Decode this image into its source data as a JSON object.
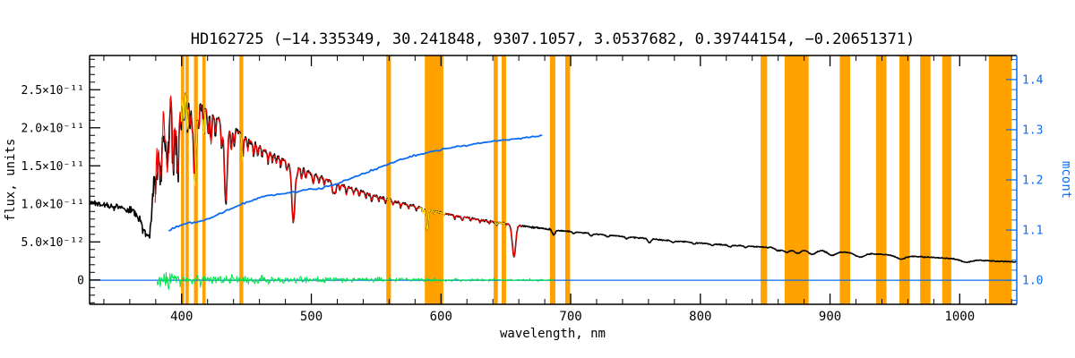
{
  "page": {
    "background": "#ffffff"
  },
  "chart_data": {
    "type": "line",
    "title": "HD162725  (−14.335349, 30.241848, 9307.1057, 3.0537682, 0.39744154, −0.20651371)",
    "xlabel": "wavelength, nm",
    "ylabel_left": "flux, units",
    "ylabel_right": "mcont",
    "x_range": [
      329,
      1044
    ],
    "x_ticks": [
      400,
      500,
      600,
      700,
      800,
      900,
      1000
    ],
    "x_tick_labels": [
      "400",
      "500",
      "600",
      "700",
      "800",
      "900",
      "1000"
    ],
    "x_minor_step": 20,
    "flux_range_e11": [
      -0.32,
      2.95
    ],
    "flux_ticks_e11": [
      0,
      0.5,
      1.0,
      1.5,
      2.0,
      2.5
    ],
    "flux_tick_labels": [
      "0",
      "5.0×10⁻¹²",
      "1.0×10⁻¹¹",
      "1.5×10⁻¹¹",
      "2.0×10⁻¹¹",
      "2.5×10⁻¹¹"
    ],
    "mcont_range": [
      0.952,
      1.448
    ],
    "mcont_ticks": [
      1.0,
      1.1,
      1.2,
      1.3,
      1.4
    ],
    "mcont_tick_labels": [
      "1.0",
      "1.1",
      "1.2",
      "1.3",
      "1.4"
    ],
    "colors": {
      "spectrum": "#000000",
      "model": "#ff0000",
      "model_masked": "#ffe400",
      "residual": "#00e54c",
      "mcont": "#0a6cf2",
      "mask": "#ffa200",
      "axis_left": "#000000",
      "axis_right": "#0a6cf2",
      "background": "#ffffff"
    },
    "masks": [
      [
        399.5,
        402.0
      ],
      [
        403.0,
        405.5
      ],
      [
        409.5,
        412.5
      ],
      [
        416.0,
        418.5
      ],
      [
        444.5,
        447.5
      ],
      [
        557.8,
        561.4
      ],
      [
        587.5,
        601.8
      ],
      [
        640.6,
        643.8
      ],
      [
        646.8,
        650.2
      ],
      [
        684.0,
        688.2
      ],
      [
        695.8,
        699.6
      ],
      [
        846.5,
        851.5
      ],
      [
        865.0,
        883.5
      ],
      [
        907.5,
        915.5
      ],
      [
        935.5,
        943.5
      ],
      [
        953.5,
        961.5
      ],
      [
        969.5,
        977.5
      ],
      [
        986.5,
        993.5
      ],
      [
        1022.5,
        1040.0
      ]
    ],
    "spectrum_continuum_e11": [
      [
        329,
        1.02
      ],
      [
        336,
        1.0
      ],
      [
        344,
        0.975
      ],
      [
        352,
        0.95
      ],
      [
        358,
        0.93
      ],
      [
        363,
        0.9
      ],
      [
        367,
        0.8
      ],
      [
        370,
        0.68
      ],
      [
        372.5,
        0.6
      ],
      [
        374.5,
        0.58
      ],
      [
        376,
        0.66
      ],
      [
        377.5,
        1.1
      ],
      [
        379,
        1.7
      ],
      [
        381,
        2.05
      ],
      [
        383,
        2.25
      ],
      [
        385.5,
        2.38
      ],
      [
        388,
        2.47
      ],
      [
        391,
        2.53
      ],
      [
        394,
        2.56
      ],
      [
        397,
        2.54
      ],
      [
        400,
        2.5
      ],
      [
        404,
        2.44
      ],
      [
        409,
        2.37
      ],
      [
        414,
        2.3
      ],
      [
        420,
        2.22
      ],
      [
        427,
        2.13
      ],
      [
        434,
        2.05
      ],
      [
        442,
        1.96
      ],
      [
        450,
        1.86
      ],
      [
        458,
        1.77
      ],
      [
        466,
        1.69
      ],
      [
        474,
        1.62
      ],
      [
        482,
        1.55
      ],
      [
        490,
        1.48
      ],
      [
        500,
        1.4
      ],
      [
        510,
        1.33
      ],
      [
        520,
        1.27
      ],
      [
        530,
        1.21
      ],
      [
        540,
        1.155
      ],
      [
        550,
        1.1
      ],
      [
        560,
        1.055
      ],
      [
        570,
        1.01
      ],
      [
        580,
        0.965
      ],
      [
        590,
        0.925
      ],
      [
        600,
        0.885
      ],
      [
        610,
        0.85
      ],
      [
        620,
        0.82
      ],
      [
        630,
        0.79
      ],
      [
        640,
        0.765
      ],
      [
        650,
        0.74
      ],
      [
        660,
        0.715
      ],
      [
        670,
        0.695
      ],
      [
        680,
        0.675
      ],
      [
        692,
        0.65
      ],
      [
        704,
        0.63
      ],
      [
        716,
        0.61
      ],
      [
        728,
        0.59
      ],
      [
        740,
        0.57
      ],
      [
        755,
        0.55
      ],
      [
        770,
        0.525
      ],
      [
        785,
        0.505
      ],
      [
        800,
        0.485
      ],
      [
        815,
        0.465
      ],
      [
        830,
        0.45
      ],
      [
        845,
        0.435
      ],
      [
        860,
        0.42
      ],
      [
        875,
        0.405
      ],
      [
        890,
        0.39
      ],
      [
        905,
        0.375
      ],
      [
        920,
        0.355
      ],
      [
        935,
        0.34
      ],
      [
        950,
        0.325
      ],
      [
        965,
        0.31
      ],
      [
        980,
        0.295
      ],
      [
        995,
        0.28
      ],
      [
        1010,
        0.265
      ],
      [
        1025,
        0.25
      ],
      [
        1044,
        0.235
      ]
    ],
    "absorption_lines": [
      [
        656.28,
        0.58,
        1.3
      ],
      [
        486.13,
        0.5,
        1.2
      ],
      [
        434.05,
        0.5,
        1.1
      ],
      [
        410.17,
        0.47,
        1.0
      ],
      [
        397.0,
        0.44,
        0.9
      ],
      [
        393.37,
        0.4,
        0.7
      ],
      [
        388.9,
        0.42,
        0.8
      ],
      [
        383.5,
        0.4,
        0.7
      ],
      [
        379.8,
        0.36,
        0.6
      ],
      [
        381.6,
        0.25,
        0.5
      ],
      [
        385.0,
        0.22,
        0.5
      ],
      [
        387.0,
        0.22,
        0.5
      ],
      [
        390.6,
        0.2,
        0.5
      ],
      [
        395.1,
        0.18,
        0.5
      ],
      [
        399.5,
        0.18,
        0.5
      ],
      [
        401.7,
        0.16,
        0.5
      ],
      [
        404.4,
        0.2,
        0.5
      ],
      [
        406.4,
        0.16,
        0.5
      ],
      [
        408.0,
        0.14,
        0.5
      ],
      [
        413.1,
        0.14,
        0.5
      ],
      [
        417.0,
        0.16,
        0.5
      ],
      [
        420.4,
        0.13,
        0.5
      ],
      [
        422.7,
        0.18,
        0.6
      ],
      [
        426.0,
        0.1,
        0.5
      ],
      [
        430.8,
        0.16,
        0.6
      ],
      [
        438.3,
        0.15,
        0.6
      ],
      [
        440.6,
        0.1,
        0.5
      ],
      [
        447.1,
        0.17,
        0.6
      ],
      [
        451.0,
        0.08,
        0.5
      ],
      [
        455.5,
        0.09,
        0.5
      ],
      [
        458.7,
        0.07,
        0.5
      ],
      [
        462.0,
        0.06,
        0.5
      ],
      [
        466.7,
        0.09,
        0.5
      ],
      [
        470.0,
        0.06,
        0.5
      ],
      [
        473.0,
        0.06,
        0.5
      ],
      [
        476.3,
        0.07,
        0.5
      ],
      [
        481.2,
        0.08,
        0.5
      ],
      [
        489.0,
        0.07,
        0.5
      ],
      [
        492.3,
        0.09,
        0.5
      ],
      [
        495.8,
        0.07,
        0.5
      ],
      [
        501.5,
        0.09,
        0.6
      ],
      [
        506.0,
        0.06,
        0.5
      ],
      [
        510.0,
        0.06,
        0.5
      ],
      [
        516.8,
        0.12,
        0.8
      ],
      [
        518.5,
        0.1,
        0.6
      ],
      [
        522.0,
        0.06,
        0.5
      ],
      [
        527.0,
        0.09,
        0.6
      ],
      [
        532.5,
        0.06,
        0.5
      ],
      [
        537.0,
        0.05,
        0.5
      ],
      [
        542.0,
        0.05,
        0.5
      ],
      [
        546.5,
        0.07,
        0.6
      ],
      [
        552.0,
        0.05,
        0.5
      ],
      [
        557.0,
        0.05,
        0.5
      ],
      [
        563.0,
        0.05,
        0.5
      ],
      [
        569.0,
        0.06,
        0.5
      ],
      [
        575.0,
        0.05,
        0.5
      ],
      [
        581.0,
        0.05,
        0.5
      ],
      [
        586.0,
        0.06,
        0.5
      ],
      [
        589.0,
        0.2,
        0.7
      ],
      [
        589.7,
        0.16,
        0.6
      ],
      [
        595.0,
        0.04,
        0.5
      ],
      [
        602.0,
        0.04,
        0.5
      ],
      [
        610.5,
        0.05,
        0.5
      ],
      [
        616.5,
        0.06,
        0.6
      ],
      [
        623.0,
        0.04,
        0.5
      ],
      [
        630.0,
        0.05,
        0.5
      ],
      [
        637.0,
        0.04,
        0.5
      ],
      [
        643.0,
        0.04,
        0.5
      ],
      [
        649.5,
        0.05,
        0.5
      ]
    ],
    "telluric_lines": [
      [
        686.9,
        0.1,
        1.2
      ],
      [
        702.0,
        0.04,
        1.0
      ],
      [
        716.0,
        0.05,
        1.1
      ],
      [
        728.5,
        0.04,
        1.0
      ],
      [
        743.0,
        0.04,
        1.0
      ],
      [
        760.6,
        0.09,
        1.2
      ],
      [
        779.0,
        0.04,
        1.1
      ],
      [
        795.0,
        0.04,
        1.1
      ],
      [
        809.0,
        0.04,
        1.1
      ],
      [
        822.7,
        0.06,
        1.2
      ],
      [
        835.0,
        0.04,
        1.1
      ],
      [
        860.0,
        0.08,
        2.0
      ],
      [
        866.5,
        0.12,
        2.4
      ],
      [
        875.0,
        0.13,
        2.6
      ],
      [
        886.2,
        0.14,
        2.8
      ],
      [
        901.5,
        0.15,
        3.0
      ],
      [
        923.0,
        0.15,
        3.4
      ],
      [
        954.8,
        0.14,
        3.8
      ],
      [
        1005.0,
        0.13,
        4.2
      ]
    ],
    "noise_profile_e11": [
      [
        329,
        0.028
      ],
      [
        345,
        0.03
      ],
      [
        360,
        0.035
      ],
      [
        370,
        0.045
      ],
      [
        376,
        0.06
      ],
      [
        380,
        0.1
      ],
      [
        386,
        0.09
      ],
      [
        392,
        0.085
      ],
      [
        398,
        0.075
      ],
      [
        405,
        0.055
      ],
      [
        415,
        0.045
      ],
      [
        430,
        0.035
      ],
      [
        450,
        0.028
      ],
      [
        475,
        0.022
      ],
      [
        500,
        0.018
      ],
      [
        540,
        0.014
      ],
      [
        580,
        0.011
      ],
      [
        620,
        0.009
      ],
      [
        660,
        0.008
      ],
      [
        700,
        0.006
      ],
      [
        800,
        0.005
      ],
      [
        900,
        0.005
      ],
      [
        1044,
        0.005
      ]
    ],
    "spike_forest_e11": [
      [
        376,
        0.1
      ],
      [
        379,
        0.38
      ],
      [
        382,
        0.48
      ],
      [
        386,
        0.42
      ],
      [
        390,
        0.36
      ],
      [
        394,
        0.3
      ],
      [
        398,
        0.22
      ],
      [
        401,
        0.14
      ],
      [
        404,
        0.06
      ]
    ],
    "model_range": [
      379.5,
      663
    ],
    "model_yellow_ranges": [
      [
        399.5,
        405.5
      ],
      [
        409.5,
        412.5
      ],
      [
        416.0,
        418.5
      ],
      [
        444.5,
        447.5
      ],
      [
        557.8,
        561.4
      ],
      [
        583.0,
        604.0
      ],
      [
        640.6,
        650.2
      ]
    ],
    "residual_range": [
      381,
      686
    ],
    "residual_noise_e11": [
      [
        381,
        0.055
      ],
      [
        384,
        0.085
      ],
      [
        388,
        0.095
      ],
      [
        392,
        0.09
      ],
      [
        396,
        0.085
      ],
      [
        400,
        0.075
      ],
      [
        405,
        0.065
      ],
      [
        412,
        0.055
      ],
      [
        420,
        0.05
      ],
      [
        430,
        0.045
      ],
      [
        445,
        0.04
      ],
      [
        460,
        0.035
      ],
      [
        480,
        0.03
      ],
      [
        500,
        0.028
      ],
      [
        525,
        0.024
      ],
      [
        550,
        0.02
      ],
      [
        575,
        0.017
      ],
      [
        600,
        0.014
      ],
      [
        625,
        0.012
      ],
      [
        650,
        0.011
      ],
      [
        686,
        0.01
      ]
    ],
    "mcont_curve": [
      [
        390,
        1.098
      ],
      [
        394,
        1.105
      ],
      [
        398,
        1.108
      ],
      [
        403,
        1.112
      ],
      [
        408,
        1.115
      ],
      [
        414,
        1.118
      ],
      [
        420,
        1.122
      ],
      [
        426,
        1.128
      ],
      [
        432,
        1.135
      ],
      [
        438,
        1.142
      ],
      [
        444,
        1.149
      ],
      [
        450,
        1.155
      ],
      [
        456,
        1.16
      ],
      [
        461,
        1.165
      ],
      [
        466,
        1.168
      ],
      [
        471,
        1.17
      ],
      [
        476,
        1.172
      ],
      [
        481,
        1.174
      ],
      [
        486,
        1.176
      ],
      [
        492,
        1.178
      ],
      [
        498,
        1.18
      ],
      [
        504,
        1.182
      ],
      [
        510,
        1.185
      ],
      [
        517,
        1.19
      ],
      [
        524,
        1.196
      ],
      [
        531,
        1.203
      ],
      [
        538,
        1.21
      ],
      [
        545,
        1.217
      ],
      [
        552,
        1.224
      ],
      [
        559,
        1.231
      ],
      [
        566,
        1.238
      ],
      [
        573,
        1.244
      ],
      [
        580,
        1.249
      ],
      [
        587,
        1.253
      ],
      [
        594,
        1.257
      ],
      [
        601,
        1.261
      ],
      [
        608,
        1.264
      ],
      [
        615,
        1.267
      ],
      [
        622,
        1.27
      ],
      [
        629,
        1.273
      ],
      [
        636,
        1.276
      ],
      [
        643,
        1.278
      ],
      [
        650,
        1.28
      ],
      [
        657,
        1.282
      ],
      [
        664,
        1.284
      ],
      [
        671,
        1.286
      ],
      [
        678,
        1.288
      ]
    ],
    "unity_level": 1.0
  }
}
